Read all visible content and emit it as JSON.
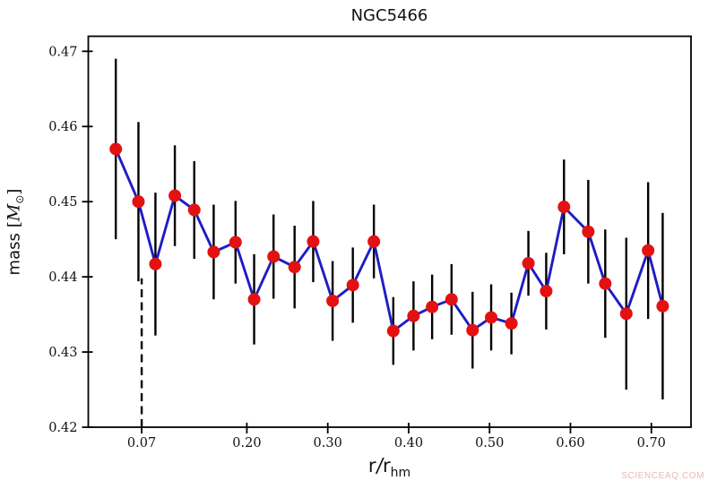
{
  "figure": {
    "title": "NGC5466",
    "watermark": "SCIENCEAQ.COM",
    "x_axis_label": {
      "base": "r",
      "slash": "/",
      "base2": "r",
      "sub": "hm"
    },
    "y_axis_label": {
      "prefix": "mass",
      "bracket_open": "[",
      "symbol": "M",
      "symbol_sub": "⊙",
      "bracket_close": "]"
    }
  },
  "chart_data": {
    "type": "line",
    "title": "NGC5466",
    "xlabel": "r/r_hm",
    "ylabel": "mass [M_sun]",
    "xlim": [
      0.004,
      0.749
    ],
    "ylim": [
      0.42,
      0.472
    ],
    "xticks": [
      0.07,
      0.2,
      0.3,
      0.4,
      0.5,
      0.6,
      0.7
    ],
    "xtick_labels": [
      "0.07",
      "0.20",
      "0.30",
      "0.40",
      "0.50",
      "0.60",
      "0.70"
    ],
    "yticks": [
      0.42,
      0.43,
      0.44,
      0.45,
      0.46,
      0.47
    ],
    "ytick_labels": [
      "0.42",
      "0.43",
      "0.44",
      "0.45",
      "0.46",
      "0.47"
    ],
    "grid": false,
    "legend": null,
    "reference_line": {
      "type": "vertical-dashed",
      "x": 0.07,
      "y_from": 0.42,
      "y_to": 0.4398,
      "color": "#000000"
    },
    "colors": {
      "line": "#1d1dc4",
      "marker": "#e41111",
      "errorbar": "#000000",
      "axes": "#000000"
    },
    "series": [
      {
        "x": [
          0.038,
          0.066,
          0.087,
          0.111,
          0.135,
          0.159,
          0.186,
          0.209,
          0.233,
          0.259,
          0.282,
          0.306,
          0.331,
          0.357,
          0.381,
          0.406,
          0.429,
          0.453,
          0.479,
          0.502,
          0.527,
          0.548,
          0.57,
          0.592,
          0.622,
          0.643,
          0.669,
          0.696,
          0.714
        ],
        "y": [
          0.457,
          0.45,
          0.4417,
          0.4508,
          0.4489,
          0.4433,
          0.4446,
          0.437,
          0.4427,
          0.4413,
          0.4447,
          0.4368,
          0.4389,
          0.4447,
          0.4328,
          0.4348,
          0.436,
          0.437,
          0.4329,
          0.4346,
          0.4338,
          0.4418,
          0.4381,
          0.4493,
          0.446,
          0.4391,
          0.4351,
          0.4435,
          0.4361
        ],
        "yerr": [
          0.012,
          0.0106,
          0.0095,
          0.0067,
          0.0065,
          0.0063,
          0.0055,
          0.006,
          0.0056,
          0.0055,
          0.0054,
          0.0053,
          0.005,
          0.0049,
          0.0045,
          0.0046,
          0.0043,
          0.0047,
          0.0051,
          0.0044,
          0.0041,
          0.0043,
          0.0051,
          0.0063,
          0.0069,
          0.0072,
          0.0101,
          0.0091,
          0.0124
        ]
      }
    ]
  }
}
